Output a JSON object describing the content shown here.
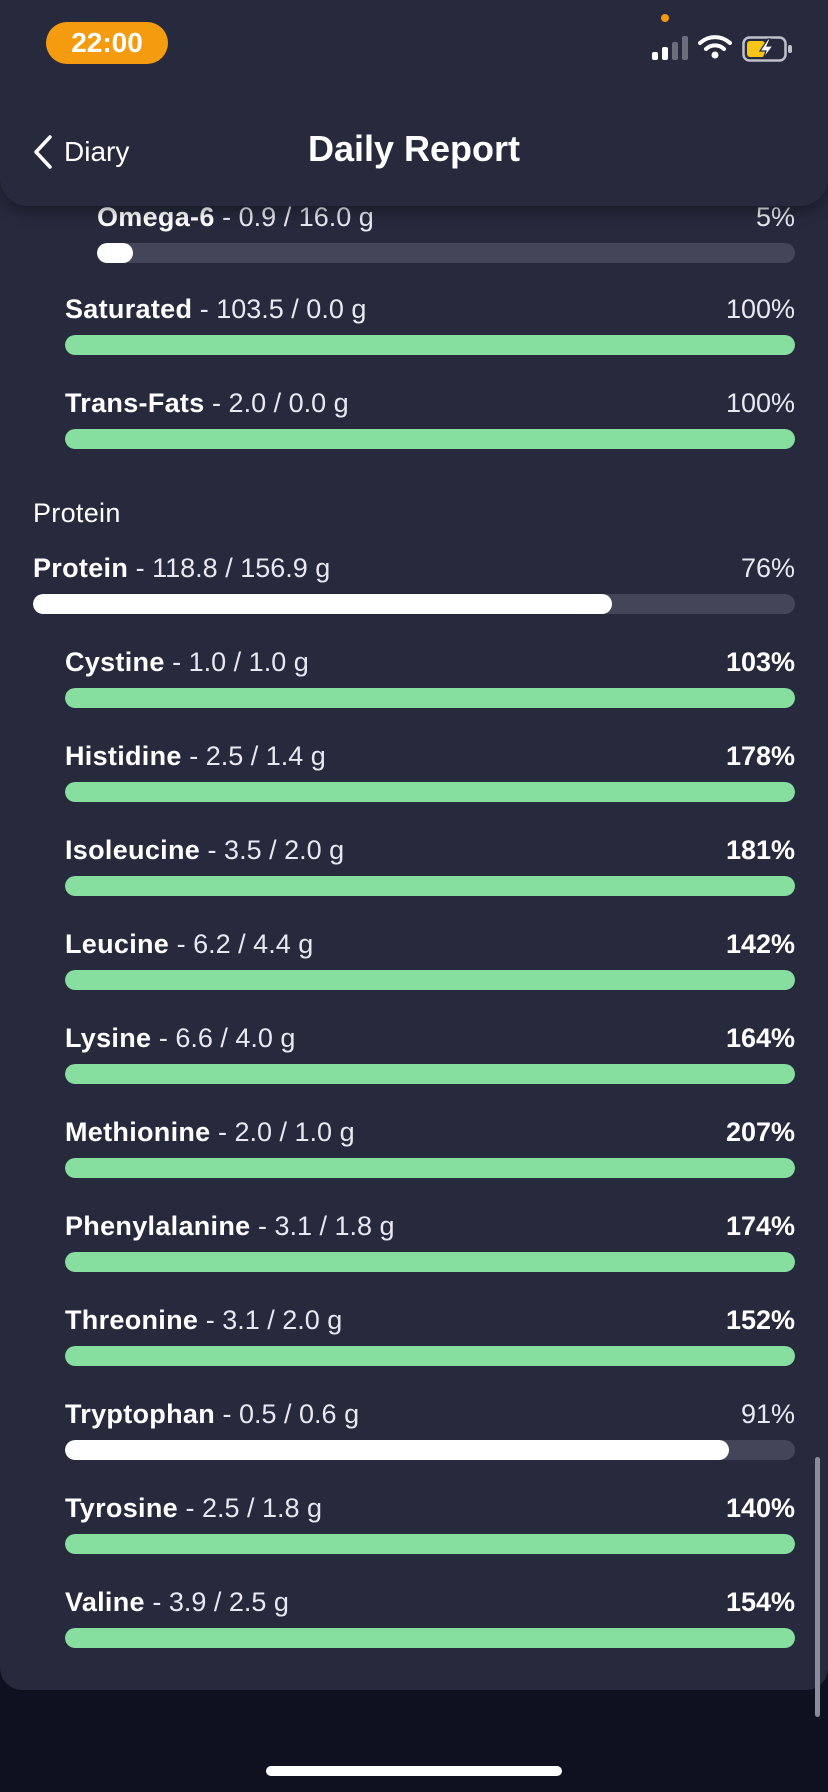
{
  "status_bar": {
    "time": "22:00"
  },
  "nav": {
    "back_label": "Diary",
    "title": "Daily Report"
  },
  "colors": {
    "over": "#86df9f",
    "under": "#ffffff",
    "track": "#434659",
    "accent": "#f59b0f"
  },
  "rows": [
    {
      "name": "Omega-6",
      "values": "0.9 / 16.0 g",
      "percent": "5%",
      "progress": 0.05,
      "bold": false,
      "indent": 2
    },
    {
      "name": "Saturated",
      "values": "103.5 / 0.0 g",
      "percent": "100%",
      "progress": 1.0,
      "bold": false,
      "indent": 1
    },
    {
      "name": "Trans-Fats",
      "values": "2.0 / 0.0 g",
      "percent": "100%",
      "progress": 1.0,
      "bold": false,
      "indent": 1
    }
  ],
  "protein_section": {
    "title": "Protein",
    "total": {
      "name": "Protein",
      "values": "118.8 / 156.9 g",
      "percent": "76%",
      "progress": 0.76,
      "bold": false
    },
    "amino_acids": [
      {
        "name": "Cystine",
        "values": "1.0 / 1.0 g",
        "percent": "103%",
        "progress": 1.0,
        "bold": true
      },
      {
        "name": "Histidine",
        "values": "2.5 / 1.4 g",
        "percent": "178%",
        "progress": 1.0,
        "bold": true
      },
      {
        "name": "Isoleucine",
        "values": "3.5 / 2.0 g",
        "percent": "181%",
        "progress": 1.0,
        "bold": true
      },
      {
        "name": "Leucine",
        "values": "6.2 / 4.4 g",
        "percent": "142%",
        "progress": 1.0,
        "bold": true
      },
      {
        "name": "Lysine",
        "values": "6.6 / 4.0 g",
        "percent": "164%",
        "progress": 1.0,
        "bold": true
      },
      {
        "name": "Methionine",
        "values": "2.0 / 1.0 g",
        "percent": "207%",
        "progress": 1.0,
        "bold": true
      },
      {
        "name": "Phenylalanine",
        "values": "3.1 / 1.8 g",
        "percent": "174%",
        "progress": 1.0,
        "bold": true
      },
      {
        "name": "Threonine",
        "values": "3.1 / 2.0 g",
        "percent": "152%",
        "progress": 1.0,
        "bold": true
      },
      {
        "name": "Tryptophan",
        "values": "0.5 / 0.6 g",
        "percent": "91%",
        "progress": 0.91,
        "bold": false
      },
      {
        "name": "Tyrosine",
        "values": "2.5 / 1.8 g",
        "percent": "140%",
        "progress": 1.0,
        "bold": true
      },
      {
        "name": "Valine",
        "values": "3.9 / 2.5 g",
        "percent": "154%",
        "progress": 1.0,
        "bold": true
      }
    ]
  }
}
